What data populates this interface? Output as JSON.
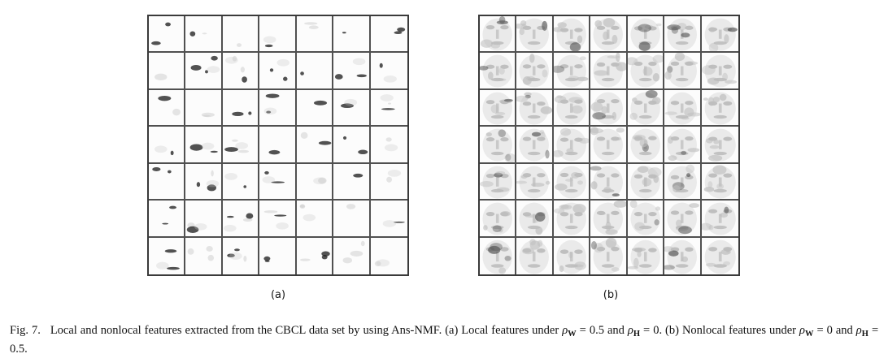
{
  "figure": {
    "panels": [
      {
        "id": "a",
        "label": "(a)",
        "kind": "local-features",
        "rows": 7,
        "cols": 7
      },
      {
        "id": "b",
        "label": "(b)",
        "kind": "nonlocal-features",
        "rows": 7,
        "cols": 7
      }
    ],
    "caption": {
      "fig_label": "Fig. 7.",
      "text_1": "Local and nonlocal features extracted from the CBCL data set by using Ans-NMF. (a) Local features under",
      "sym_1": "ρ",
      "sub_1": "W",
      "text_2": "= 0.5 and",
      "sym_2": "ρ",
      "sub_2": "H",
      "text_3": "= 0. (b) Nonlocal features under",
      "sym_3": "ρ",
      "sub_3": "W",
      "text_4": "= 0 and",
      "sym_4": "ρ",
      "sub_4": "H",
      "text_5": "= 0.5."
    },
    "colors": {
      "border": "#3a3a3a",
      "feature_dark": "#1a1a1a",
      "feature_light": "#c8c8c8"
    }
  }
}
